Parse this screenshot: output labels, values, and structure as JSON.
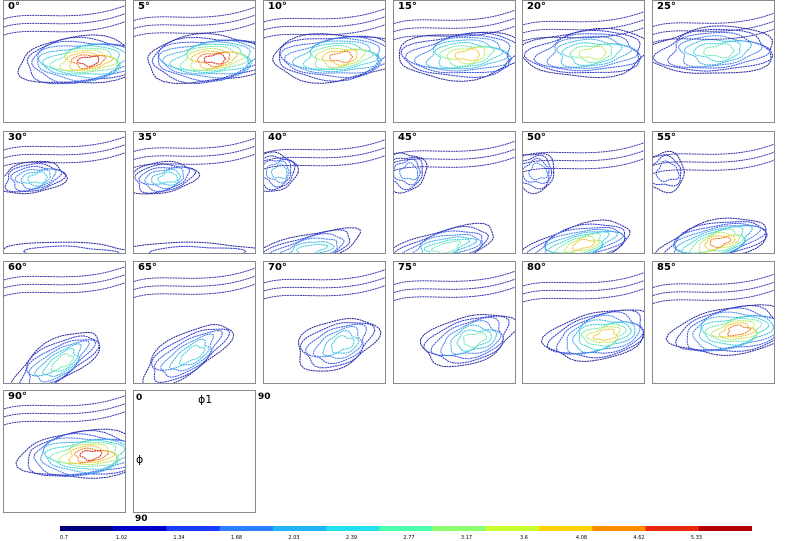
{
  "panels": [
    {
      "label": "0°",
      "angle": 0
    },
    {
      "label": "5°",
      "angle": 5
    },
    {
      "label": "10°",
      "angle": 10
    },
    {
      "label": "15°",
      "angle": 15
    },
    {
      "label": "20°",
      "angle": 20
    },
    {
      "label": "25°",
      "angle": 25
    },
    {
      "label": "30°",
      "angle": 30
    },
    {
      "label": "35°",
      "angle": 35
    },
    {
      "label": "40°",
      "angle": 40
    },
    {
      "label": "45°",
      "angle": 45
    },
    {
      "label": "50°",
      "angle": 50
    },
    {
      "label": "55°",
      "angle": 55
    },
    {
      "label": "60°",
      "angle": 60
    },
    {
      "label": "65°",
      "angle": 65
    },
    {
      "label": "70°",
      "angle": 70
    },
    {
      "label": "75°",
      "angle": 75
    },
    {
      "label": "80°",
      "angle": 80
    },
    {
      "label": "85°",
      "angle": 85
    },
    {
      "label": "90°",
      "angle": 90
    }
  ],
  "key": {
    "origin": "0",
    "right": "90",
    "bottom": "90",
    "phi_top": "ϕ1",
    "phi_left": "ϕ"
  },
  "colorbar": {
    "labels": [
      "0.7",
      "1.02",
      "1.34",
      "1.68",
      "2.03",
      "2.39",
      "2.77",
      "3.17",
      "3.6",
      "4.08",
      "4.62",
      "5.33"
    ],
    "colors": [
      "#00007f",
      "#0000cc",
      "#1a3cff",
      "#2d7fff",
      "#22b4ff",
      "#22e0ee",
      "#4affb0",
      "#8cff6e",
      "#caff2e",
      "#ffd400",
      "#ff8c00",
      "#e8280a",
      "#b30000"
    ]
  }
}
